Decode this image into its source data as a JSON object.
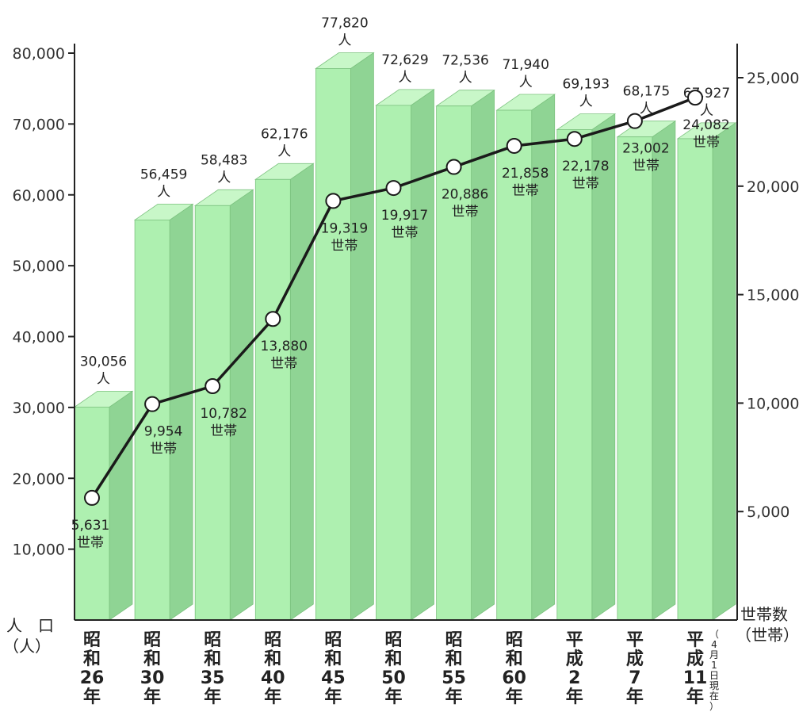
{
  "chart_data": {
    "type": "bar",
    "categories": [
      [
        "昭",
        "和",
        "26",
        "年"
      ],
      [
        "昭",
        "和",
        "30",
        "年"
      ],
      [
        "昭",
        "和",
        "35",
        "年"
      ],
      [
        "昭",
        "和",
        "40",
        "年"
      ],
      [
        "昭",
        "和",
        "45",
        "年"
      ],
      [
        "昭",
        "和",
        "50",
        "年"
      ],
      [
        "昭",
        "和",
        "55",
        "年"
      ],
      [
        "昭",
        "和",
        "60",
        "年"
      ],
      [
        "平",
        "成",
        "2",
        "年"
      ],
      [
        "平",
        "成",
        "7",
        "年"
      ],
      [
        "平",
        "成",
        "11",
        "年"
      ]
    ],
    "category_note": [
      "（",
      "4",
      "月",
      "1",
      "日",
      "現",
      "在",
      "）"
    ],
    "series": [
      {
        "type": "bar",
        "axis": "left",
        "values": [
          30056,
          56459,
          58483,
          62176,
          77820,
          72629,
          72536,
          71940,
          69193,
          68175,
          67927
        ],
        "labels": [
          "30,056",
          "56,459",
          "58,483",
          "62,176",
          "77,820",
          "72,629",
          "72,536",
          "71,940",
          "69,193",
          "68,175",
          "67,927"
        ],
        "unit": "人",
        "color": "#aef0b0"
      },
      {
        "type": "line",
        "axis": "right",
        "values": [
          5631,
          9954,
          10782,
          13880,
          19319,
          19917,
          20886,
          21858,
          22178,
          23002,
          24082
        ],
        "labels": [
          "5,631",
          "9,954",
          "10,782",
          "13,880",
          "19,319",
          "19,917",
          "20,886",
          "21,858",
          "22,178",
          "23,002",
          "24,082"
        ],
        "unit": "世帯",
        "color": "#1a1a1a"
      }
    ],
    "y_left": {
      "label": "人　口",
      "unit": "（人）",
      "ylim": [
        0,
        80000
      ],
      "ticks": [
        10000,
        20000,
        30000,
        40000,
        50000,
        60000,
        70000,
        80000
      ],
      "tick_labels": [
        "10,000",
        "20,000",
        "30,000",
        "40,000",
        "50,000",
        "60,000",
        "70,000",
        "80,000"
      ]
    },
    "y_right": {
      "label": "世帯数",
      "unit": "（世帯）",
      "ylim": [
        0,
        25000
      ],
      "ticks": [
        5000,
        10000,
        15000,
        20000,
        25000
      ],
      "tick_labels": [
        "5,000",
        "10,000",
        "15,000",
        "20,000",
        "25,000"
      ]
    },
    "grid": false,
    "legend": "none"
  }
}
